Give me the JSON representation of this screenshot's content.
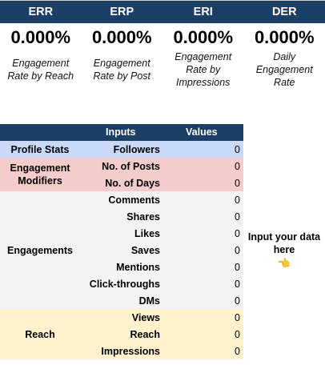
{
  "metrics": [
    {
      "code": "ERR",
      "value": "0.000%",
      "description": "Engagement Rate by Reach"
    },
    {
      "code": "ERP",
      "value": "0.000%",
      "description": "Engagement Rate by Post"
    },
    {
      "code": "ERI",
      "value": "0.000%",
      "description": "Engagement Rate by Impressions"
    },
    {
      "code": "DER",
      "value": "0.000%",
      "description": "Daily Engagement Rate"
    }
  ],
  "table": {
    "header": {
      "inputs": "Inputs",
      "values": "Values"
    },
    "groups": [
      {
        "label": "Profile Stats",
        "color": "#c9daf8",
        "rows": [
          {
            "label": "Followers",
            "value": "0"
          }
        ]
      },
      {
        "label": "Engagement Modifiers",
        "color": "#f4cccc",
        "rows": [
          {
            "label": "No. of Posts",
            "value": "0"
          },
          {
            "label": "No. of Days",
            "value": "0"
          }
        ]
      },
      {
        "label": "Engagements",
        "color": "#f3f3f3",
        "rows": [
          {
            "label": "Comments",
            "value": "0"
          },
          {
            "label": "Shares",
            "value": "0"
          },
          {
            "label": "Likes",
            "value": "0"
          },
          {
            "label": "Saves",
            "value": "0"
          },
          {
            "label": "Mentions",
            "value": "0"
          },
          {
            "label": "Click-throughs",
            "value": "0"
          },
          {
            "label": "DMs",
            "value": "0"
          }
        ]
      },
      {
        "label": "Reach",
        "color": "#fff2cc",
        "rows": [
          {
            "label": "Views",
            "value": "0"
          },
          {
            "label": "Reach",
            "value": "0"
          },
          {
            "label": "Impressions",
            "value": "0"
          }
        ]
      }
    ]
  },
  "hint": {
    "text": "Input your data here",
    "icon": "pointing-hand-icon",
    "glyph": "👈"
  },
  "colors": {
    "header": "#1c3f66"
  }
}
